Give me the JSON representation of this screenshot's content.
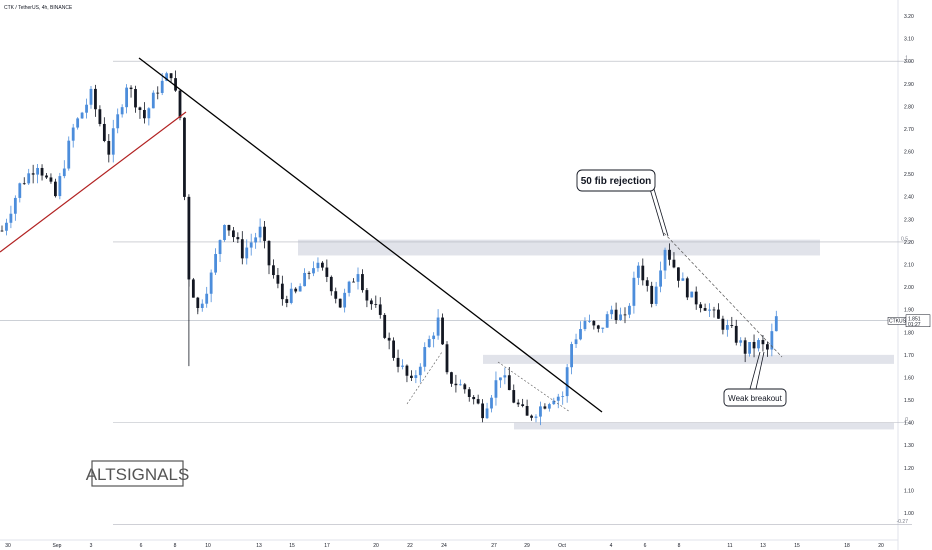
{
  "header": {
    "title": "CTK / TetherUS, 4h, BINANCE"
  },
  "colors": {
    "up": "#4c8ddb",
    "down": "#131722",
    "zone": "#e1e3ea",
    "redline": "#b22222",
    "black": "#000000"
  },
  "chart_data": {
    "type": "candlestick",
    "symbol": "CTKUSDT",
    "last_price": "1.851",
    "countdown": "01:27",
    "ylim": [
      0.94,
      3.32
    ],
    "y_ticks": [
      "1.00",
      "1.10",
      "1.20",
      "1.30",
      "1.40",
      "1.50",
      "1.60",
      "1.70",
      "1.80",
      "1.90",
      "2.00",
      "2.10",
      "2.20",
      "2.30",
      "2.40",
      "2.50",
      "2.60",
      "2.70",
      "2.80",
      "2.90",
      "3.00",
      "3.10",
      "3.20"
    ],
    "x_tick_labels": [
      "30",
      "Sep",
      "3",
      "6",
      "8",
      "10",
      "13",
      "15",
      "17",
      "20",
      "22",
      "24",
      "27",
      "29",
      "Oct",
      "4",
      "6",
      "8",
      "11",
      "13",
      "15",
      "18",
      "20"
    ],
    "fib_levels": [
      {
        "label": "1",
        "price": 3.0
      },
      {
        "label": "0.5",
        "price": 2.2
      },
      {
        "label": "0",
        "price": 1.4
      },
      {
        "label": "-0.27",
        "price": 0.95
      }
    ],
    "zones": [
      {
        "from": 2.14,
        "to": 2.21
      },
      {
        "from": 1.66,
        "to": 1.7
      },
      {
        "from": 1.37,
        "to": 1.4
      }
    ],
    "annotations": [
      "50 fib rejection",
      "Weak breakout"
    ],
    "watermark": "ALTSIGNALS",
    "price_path": [
      {
        "t": 0,
        "p": 2.25
      },
      {
        "t": 4,
        "p": 2.45
      },
      {
        "t": 8,
        "p": 2.55
      },
      {
        "t": 12,
        "p": 2.4
      },
      {
        "t": 16,
        "p": 2.7
      },
      {
        "t": 20,
        "p": 2.85
      },
      {
        "t": 24,
        "p": 2.6
      },
      {
        "t": 28,
        "p": 2.9
      },
      {
        "t": 32,
        "p": 2.75
      },
      {
        "t": 35,
        "p": 2.88
      },
      {
        "t": 38,
        "p": 2.95
      },
      {
        "t": 40,
        "p": 2.75
      },
      {
        "t": 42,
        "p": 2.05
      },
      {
        "t": 44,
        "p": 1.9
      },
      {
        "t": 47,
        "p": 2.05
      },
      {
        "t": 50,
        "p": 2.3
      },
      {
        "t": 54,
        "p": 2.15
      },
      {
        "t": 58,
        "p": 2.25
      },
      {
        "t": 60,
        "p": 2.1
      },
      {
        "t": 63,
        "p": 1.95
      },
      {
        "t": 66,
        "p": 1.97
      },
      {
        "t": 70,
        "p": 2.1
      },
      {
        "t": 73,
        "p": 2.05
      },
      {
        "t": 76,
        "p": 1.92
      },
      {
        "t": 80,
        "p": 2.08
      },
      {
        "t": 82,
        "p": 1.95
      },
      {
        "t": 84,
        "p": 1.9
      },
      {
        "t": 88,
        "p": 1.7
      },
      {
        "t": 92,
        "p": 1.57
      },
      {
        "t": 95,
        "p": 1.72
      },
      {
        "t": 98,
        "p": 1.85
      },
      {
        "t": 100,
        "p": 1.6
      },
      {
        "t": 104,
        "p": 1.55
      },
      {
        "t": 108,
        "p": 1.45
      },
      {
        "t": 112,
        "p": 1.62
      },
      {
        "t": 115,
        "p": 1.5
      },
      {
        "t": 118,
        "p": 1.42
      },
      {
        "t": 121,
        "p": 1.47
      },
      {
        "t": 124,
        "p": 1.52
      },
      {
        "t": 126,
        "p": 1.52
      },
      {
        "t": 128,
        "p": 1.75
      },
      {
        "t": 131,
        "p": 1.85
      },
      {
        "t": 134,
        "p": 1.8
      },
      {
        "t": 137,
        "p": 1.9
      },
      {
        "t": 140,
        "p": 1.85
      },
      {
        "t": 143,
        "p": 2.1
      },
      {
        "t": 146,
        "p": 1.95
      },
      {
        "t": 149,
        "p": 2.18
      },
      {
        "t": 152,
        "p": 2.05
      },
      {
        "t": 155,
        "p": 1.95
      },
      {
        "t": 158,
        "p": 1.92
      },
      {
        "t": 161,
        "p": 1.85
      },
      {
        "t": 164,
        "p": 1.8
      },
      {
        "t": 167,
        "p": 1.72
      },
      {
        "t": 170,
        "p": 1.75
      },
      {
        "t": 172,
        "p": 1.72
      },
      {
        "t": 174,
        "p": 1.86
      }
    ]
  }
}
